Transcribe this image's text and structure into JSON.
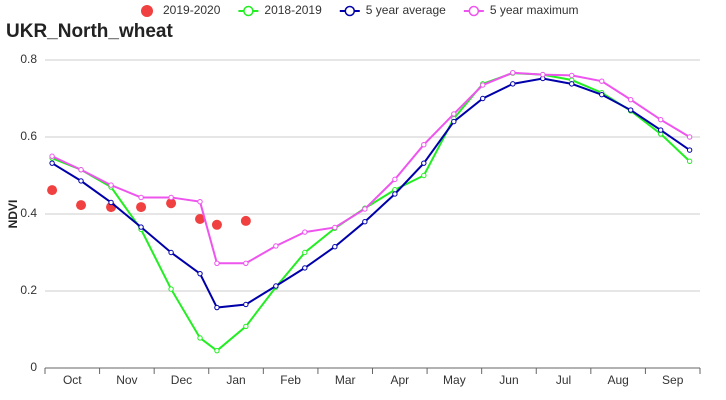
{
  "chart_data": {
    "type": "line",
    "title": "UKR_North_wheat",
    "y_label": "NDVI",
    "x": [
      0.13,
      0.66,
      1.21,
      1.76,
      2.31,
      2.84,
      3.15,
      3.68,
      4.23,
      4.76,
      5.31,
      5.86,
      6.41,
      6.94,
      7.49,
      8.02,
      8.57,
      9.12,
      9.65,
      10.2,
      10.73,
      11.28,
      11.81
    ],
    "xlim": [
      0,
      12
    ],
    "xticks": [
      {
        "value": 0.5,
        "label": "Oct"
      },
      {
        "value": 1.5,
        "label": "Nov"
      },
      {
        "value": 2.5,
        "label": "Dec"
      },
      {
        "value": 3.5,
        "label": "Jan"
      },
      {
        "value": 4.5,
        "label": "Feb"
      },
      {
        "value": 5.5,
        "label": "Mar"
      },
      {
        "value": 6.5,
        "label": "Apr"
      },
      {
        "value": 7.5,
        "label": "May"
      },
      {
        "value": 8.5,
        "label": "Jun"
      },
      {
        "value": 9.5,
        "label": "Jul"
      },
      {
        "value": 10.5,
        "label": "Aug"
      },
      {
        "value": 11.5,
        "label": "Sep"
      }
    ],
    "ylim": [
      0,
      0.8
    ],
    "yticks": [
      0,
      0.2,
      0.4,
      0.6,
      0.8
    ],
    "grid": true,
    "series": [
      {
        "name": "2019-2020",
        "color": "#f04040",
        "mode": "markers",
        "values": [
          0.462,
          0.423,
          0.418,
          0.418,
          0.428,
          0.387,
          0.372,
          0.382,
          null,
          null,
          null,
          null,
          null,
          null,
          null,
          null,
          null,
          null,
          null,
          null,
          null,
          null,
          null
        ]
      },
      {
        "name": "2018-2019",
        "color": "#22ee22",
        "mode": "lines",
        "values": [
          0.545,
          0.515,
          0.47,
          0.36,
          0.205,
          0.078,
          0.045,
          0.108,
          0.21,
          0.3,
          0.363,
          0.415,
          0.463,
          0.5,
          0.648,
          0.738,
          0.766,
          0.762,
          0.748,
          0.715,
          0.668,
          0.608,
          0.537
        ]
      },
      {
        "name": "5 year average",
        "color": "#0000aa",
        "mode": "lines",
        "values": [
          0.532,
          0.486,
          0.43,
          0.366,
          0.3,
          0.245,
          0.157,
          0.165,
          0.213,
          0.26,
          0.315,
          0.38,
          0.452,
          0.532,
          0.64,
          0.7,
          0.738,
          0.752,
          0.738,
          0.71,
          0.67,
          0.618,
          0.566
        ]
      },
      {
        "name": "5 year maximum",
        "color": "#ee55ee",
        "mode": "lines",
        "values": [
          0.55,
          0.515,
          0.475,
          0.443,
          0.443,
          0.432,
          0.272,
          0.272,
          0.317,
          0.353,
          0.365,
          0.413,
          0.49,
          0.58,
          0.66,
          0.735,
          0.767,
          0.762,
          0.76,
          0.745,
          0.697,
          0.645,
          0.6
        ]
      }
    ]
  }
}
